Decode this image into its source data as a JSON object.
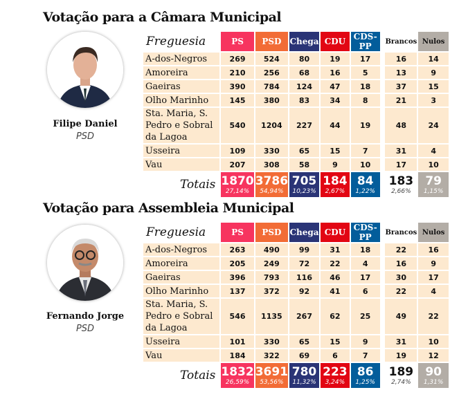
{
  "colors": {
    "PS": "#f7345f",
    "PSD": "#f26c36",
    "Chega": "#2a3476",
    "CDU": "#e20613",
    "CDS-PP": "#035d9b",
    "Brancos": "#ffffff",
    "Nulos": "#b3ada6"
  },
  "sections": [
    {
      "title": "Votação para a Câmara Municipal",
      "candidate": {
        "name": "Filipe Daniel",
        "party": "PSD"
      },
      "freguesia_label": "Freguesia",
      "totals_label": "Totais",
      "columns": [
        "PS",
        "PSD",
        "Chega",
        "CDU",
        "CDS-PP",
        "Brancos",
        "Nulos"
      ],
      "rows": [
        {
          "name": "A-dos-Negros",
          "values": [
            "269",
            "524",
            "80",
            "19",
            "17",
            "16",
            "14"
          ]
        },
        {
          "name": "Amoreira",
          "values": [
            "210",
            "256",
            "68",
            "16",
            "5",
            "13",
            "9"
          ]
        },
        {
          "name": "Gaeiras",
          "values": [
            "390",
            "784",
            "124",
            "47",
            "18",
            "37",
            "15"
          ]
        },
        {
          "name": "Olho Marinho",
          "values": [
            "145",
            "380",
            "83",
            "34",
            "8",
            "21",
            "3"
          ]
        },
        {
          "name": "Sta. Maria, S. Pedro e Sobral da Lagoa",
          "values": [
            "540",
            "1204",
            "227",
            "44",
            "19",
            "48",
            "24"
          ]
        },
        {
          "name": "Usseira",
          "values": [
            "109",
            "330",
            "65",
            "15",
            "7",
            "31",
            "4"
          ]
        },
        {
          "name": "Vau",
          "values": [
            "207",
            "308",
            "58",
            "9",
            "10",
            "17",
            "10"
          ]
        }
      ],
      "totals": [
        "1870",
        "3786",
        "705",
        "184",
        "84",
        "183",
        "79"
      ],
      "percentages": [
        "27,14%",
        "54,94%",
        "10,23%",
        "2,67%",
        "1,22%",
        "2,66%",
        "1,15%"
      ]
    },
    {
      "title": "Votação para Assembleia Municipal",
      "candidate": {
        "name": "Fernando Jorge",
        "party": "PSD"
      },
      "freguesia_label": "Freguesia",
      "totals_label": "Totais",
      "columns": [
        "PS",
        "PSD",
        "Chega",
        "CDU",
        "CDS-PP",
        "Brancos",
        "Nulos"
      ],
      "rows": [
        {
          "name": "A-dos-Negros",
          "values": [
            "263",
            "490",
            "99",
            "31",
            "18",
            "22",
            "16"
          ]
        },
        {
          "name": "Amoreira",
          "values": [
            "205",
            "249",
            "72",
            "22",
            "4",
            "16",
            "9"
          ]
        },
        {
          "name": "Gaeiras",
          "values": [
            "396",
            "793",
            "116",
            "46",
            "17",
            "30",
            "17"
          ]
        },
        {
          "name": "Olho Marinho",
          "values": [
            "137",
            "372",
            "92",
            "41",
            "6",
            "22",
            "4"
          ]
        },
        {
          "name": "Sta. Maria, S. Pedro e Sobral da Lagoa",
          "values": [
            "546",
            "1135",
            "267",
            "62",
            "25",
            "49",
            "22"
          ]
        },
        {
          "name": "Usseira",
          "values": [
            "101",
            "330",
            "65",
            "15",
            "9",
            "31",
            "10"
          ]
        },
        {
          "name": "Vau",
          "values": [
            "184",
            "322",
            "69",
            "6",
            "7",
            "19",
            "12"
          ]
        }
      ],
      "totals": [
        "1832",
        "3691",
        "780",
        "223",
        "86",
        "189",
        "90"
      ],
      "percentages": [
        "26,59%",
        "53,56%",
        "11,32%",
        "3,24%",
        "1,25%",
        "2,74%",
        "1,31%"
      ]
    }
  ]
}
